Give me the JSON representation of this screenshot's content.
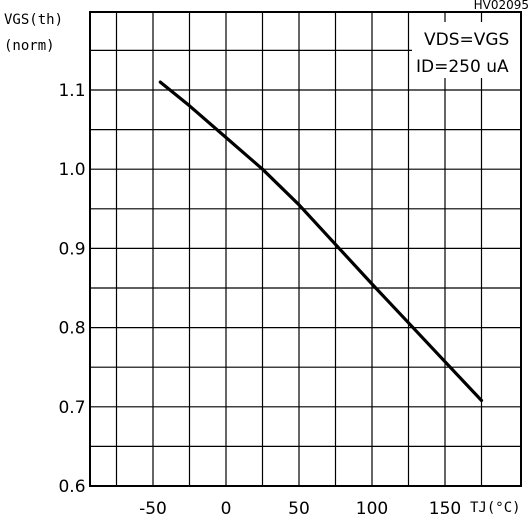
{
  "chart_data": {
    "type": "line",
    "figure_code": "HV02095",
    "ylabel_line1": "VGS(th)",
    "ylabel_line2": "(norm)",
    "xlabel": "TJ(°C)",
    "conditions": [
      "VDS=VGS",
      "ID=250 uA"
    ],
    "xlim": [
      -90,
      190
    ],
    "ylim": [
      0.6,
      1.15
    ],
    "x_ticks": [
      -50,
      0,
      50,
      100,
      150
    ],
    "x_tick_labels": [
      "-50",
      "0",
      "50",
      "100",
      "150"
    ],
    "y_ticks": [
      0.6,
      0.7,
      0.8,
      0.9,
      1.0,
      1.1
    ],
    "y_tick_labels": [
      "0.6",
      "0.7",
      "0.8",
      "0.9",
      "1.0",
      "1.1"
    ],
    "grid": true,
    "series": [
      {
        "x": [
          -45,
          -25,
          0,
          25,
          50,
          75,
          100,
          125,
          150,
          175
        ],
        "y": [
          1.11,
          1.08,
          1.04,
          1.0,
          0.955,
          0.905,
          0.855,
          0.806,
          0.757,
          0.708
        ]
      }
    ]
  }
}
